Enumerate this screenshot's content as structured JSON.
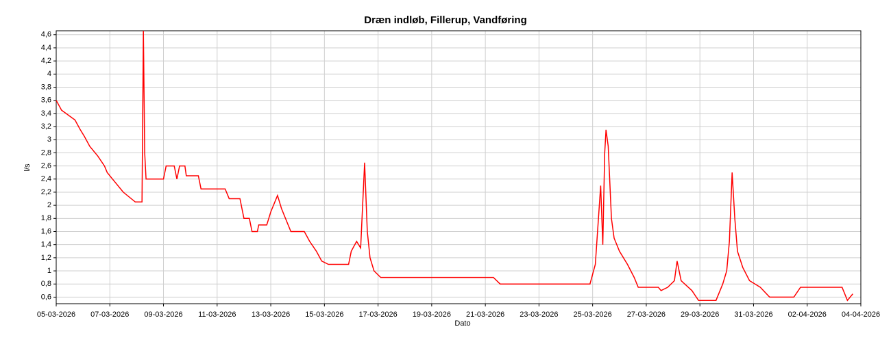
{
  "chart_data": {
    "type": "line",
    "title": "Dræn indløb, Fillerup, Vandføring",
    "xlabel": "Dato",
    "ylabel": "l/s",
    "grid": true,
    "xlim": [
      0,
      30
    ],
    "ylim": [
      0.5,
      4.66
    ],
    "xticks": [
      {
        "value": 0,
        "label": "05-03-2026"
      },
      {
        "value": 2,
        "label": "07-03-2026"
      },
      {
        "value": 4,
        "label": "09-03-2026"
      },
      {
        "value": 6,
        "label": "11-03-2026"
      },
      {
        "value": 8,
        "label": "13-03-2026"
      },
      {
        "value": 10,
        "label": "15-03-2026"
      },
      {
        "value": 12,
        "label": "17-03-2026"
      },
      {
        "value": 14,
        "label": "19-03-2026"
      },
      {
        "value": 16,
        "label": "21-03-2026"
      },
      {
        "value": 18,
        "label": "23-03-2026"
      },
      {
        "value": 20,
        "label": "25-03-2026"
      },
      {
        "value": 22,
        "label": "27-03-2026"
      },
      {
        "value": 24,
        "label": "29-03-2026"
      },
      {
        "value": 26,
        "label": "31-03-2026"
      },
      {
        "value": 28,
        "label": "02-04-2026"
      },
      {
        "value": 30,
        "label": "04-04-2026"
      }
    ],
    "yticks": [
      {
        "value": 0.6,
        "label": "0,6"
      },
      {
        "value": 0.8,
        "label": "0,8"
      },
      1,
      {
        "value": 1.2,
        "label": "1,2"
      },
      {
        "value": 1.4,
        "label": "1,4"
      },
      {
        "value": 1.6,
        "label": "1,6"
      },
      {
        "value": 1.8,
        "label": "1,8"
      },
      2,
      {
        "value": 2.2,
        "label": "2,2"
      },
      {
        "value": 2.4,
        "label": "2,4"
      },
      {
        "value": 2.6,
        "label": "2,6"
      },
      {
        "value": 2.8,
        "label": "2,8"
      },
      3,
      {
        "value": 3.2,
        "label": "3,2"
      },
      {
        "value": 3.4,
        "label": "3,4"
      },
      {
        "value": 3.6,
        "label": "3,6"
      },
      {
        "value": 3.8,
        "label": "3,8"
      },
      4,
      {
        "value": 4.2,
        "label": "4,2"
      },
      {
        "value": 4.4,
        "label": "4,4"
      },
      {
        "value": 4.6,
        "label": "4,6"
      }
    ],
    "series": [
      {
        "name": "Vandføring",
        "color": "#ff0000",
        "x": [
          0,
          0.2,
          0.7,
          0.9,
          1.05,
          1.25,
          1.55,
          1.8,
          1.9,
          2.1,
          2.5,
          2.95,
          3.2,
          3.25,
          3.3,
          3.35,
          4.0,
          4.1,
          4.4,
          4.5,
          4.6,
          4.8,
          4.85,
          5.3,
          5.4,
          6.3,
          6.45,
          6.85,
          7.0,
          7.2,
          7.3,
          7.5,
          7.55,
          7.85,
          8.0,
          8.25,
          8.4,
          8.6,
          8.75,
          9.25,
          9.45,
          9.7,
          9.9,
          10.15,
          10.9,
          11.0,
          11.2,
          11.35,
          11.5,
          11.6,
          11.7,
          11.85,
          12.1,
          16.3,
          16.55,
          19.9,
          20.1,
          20.3,
          20.38,
          20.45,
          20.5,
          20.58,
          20.7,
          20.8,
          21.0,
          21.3,
          21.55,
          21.7,
          22.45,
          22.55,
          22.8,
          23.05,
          23.15,
          23.3,
          23.7,
          23.95,
          24.6,
          24.85,
          25.0,
          25.1,
          25.2,
          25.3,
          25.4,
          25.6,
          25.85,
          26.25,
          26.6,
          27.5,
          27.75,
          29.3,
          29.5,
          29.7
        ],
        "values": [
          3.6,
          3.45,
          3.3,
          3.15,
          3.05,
          2.9,
          2.75,
          2.6,
          2.5,
          2.4,
          2.2,
          2.05,
          2.05,
          4.66,
          2.8,
          2.4,
          2.4,
          2.6,
          2.6,
          2.4,
          2.6,
          2.6,
          2.45,
          2.45,
          2.25,
          2.25,
          2.1,
          2.1,
          1.8,
          1.8,
          1.6,
          1.6,
          1.7,
          1.7,
          1.9,
          2.15,
          1.95,
          1.75,
          1.6,
          1.6,
          1.45,
          1.3,
          1.15,
          1.1,
          1.1,
          1.3,
          1.45,
          1.35,
          2.65,
          1.6,
          1.2,
          1.0,
          0.9,
          0.9,
          0.8,
          0.8,
          1.1,
          2.3,
          1.4,
          2.8,
          3.15,
          2.9,
          1.8,
          1.5,
          1.3,
          1.1,
          0.9,
          0.75,
          0.75,
          0.7,
          0.75,
          0.85,
          1.15,
          0.85,
          0.7,
          0.55,
          0.55,
          0.8,
          1.0,
          1.45,
          2.5,
          1.8,
          1.3,
          1.05,
          0.85,
          0.75,
          0.6,
          0.6,
          0.75,
          0.75,
          0.55,
          0.65
        ]
      }
    ]
  }
}
